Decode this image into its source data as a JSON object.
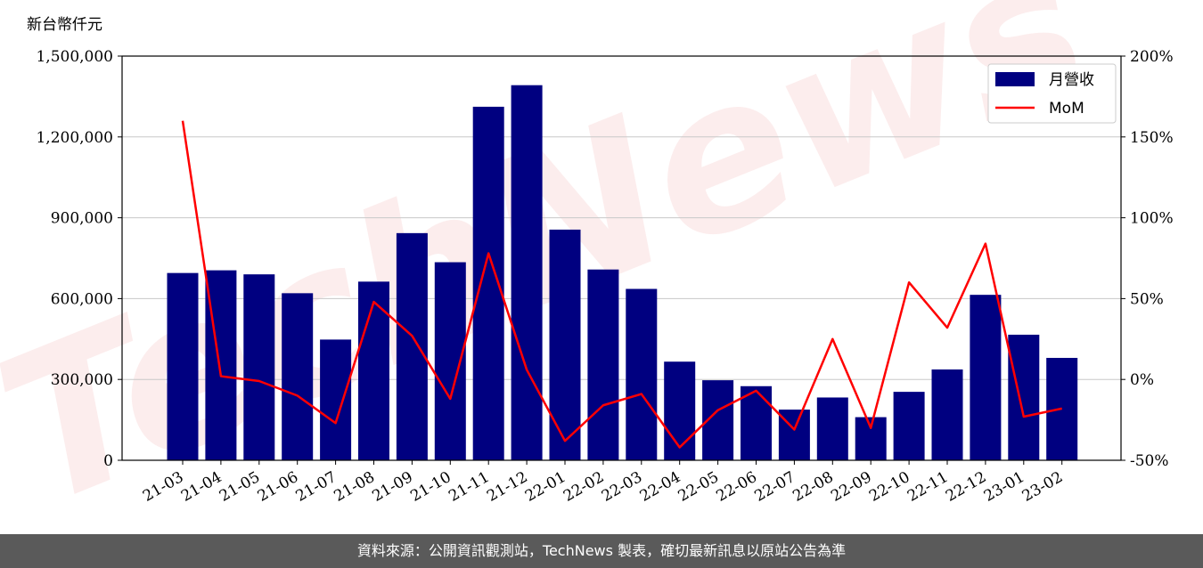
{
  "chart_data": {
    "type": "bar",
    "unit_label": "新台幣仟元",
    "categories": [
      "21-03",
      "21-04",
      "21-05",
      "21-06",
      "21-07",
      "21-08",
      "21-09",
      "21-10",
      "21-11",
      "21-12",
      "22-01",
      "22-02",
      "22-03",
      "22-04",
      "22-05",
      "22-06",
      "22-07",
      "22-08",
      "22-09",
      "22-10",
      "22-11",
      "22-12",
      "23-01",
      "23-02"
    ],
    "series": [
      {
        "name": "月營收",
        "kind": "bar",
        "axis": "left",
        "color": "#000080",
        "values": [
          695000,
          705000,
          690000,
          620000,
          448000,
          663000,
          843000,
          735000,
          1312000,
          1392000,
          856000,
          708000,
          636000,
          366000,
          297000,
          275000,
          188000,
          233000,
          160000,
          254000,
          337000,
          614000,
          466000,
          380000
        ]
      },
      {
        "name": "MoM",
        "kind": "line",
        "axis": "right",
        "color": "#ff0000",
        "values": [
          160,
          2,
          -1,
          -10,
          -27,
          48,
          27,
          -12,
          78,
          6,
          -38,
          -16,
          -9,
          -42,
          -19,
          -7,
          -31,
          25,
          -30,
          60,
          32,
          84,
          -23,
          -18
        ]
      }
    ],
    "left_axis": {
      "ylim": [
        0,
        1500000
      ],
      "ticks": [
        0,
        300000,
        600000,
        900000,
        1200000,
        1500000
      ],
      "tick_labels": [
        "0",
        "300,000",
        "600,000",
        "900,000",
        "1,200,000",
        "1,500,000"
      ]
    },
    "right_axis": {
      "ylim": [
        -50,
        200
      ],
      "ticks": [
        -50,
        0,
        50,
        100,
        150,
        200
      ],
      "tick_labels": [
        "-50%",
        "0%",
        "50%",
        "100%",
        "150%",
        "200%"
      ]
    },
    "grid": "horizontal",
    "legend_position": "top-right"
  },
  "watermark": "TechNews",
  "footer": "資料來源：公開資訊觀測站，TechNews 製表，確切最新訊息以原站公告為準"
}
